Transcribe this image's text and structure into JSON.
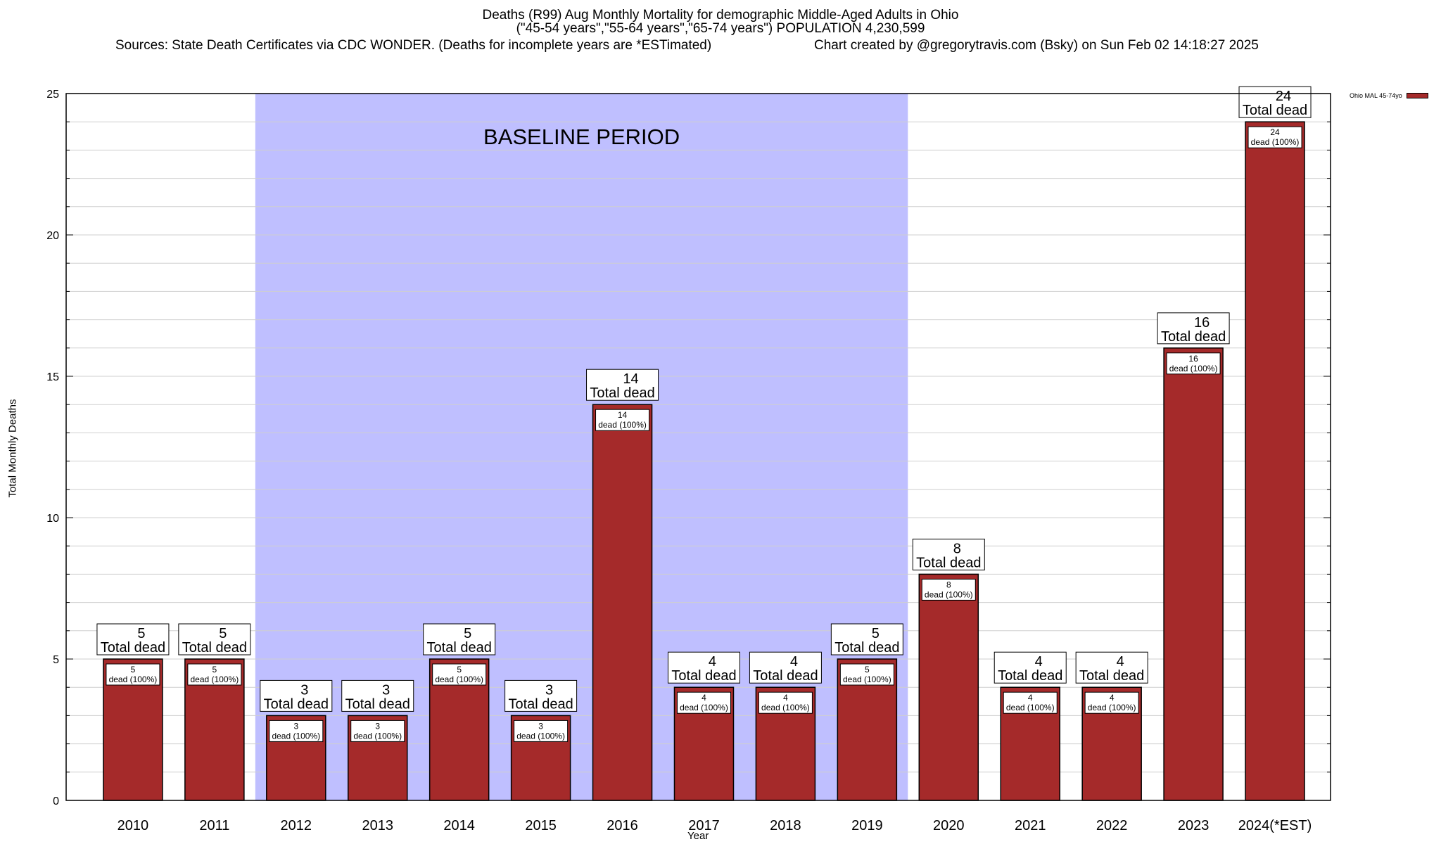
{
  "title": {
    "line1": "Deaths (R99) Aug Monthly Mortality for demographic Middle-Aged Adults in Ohio",
    "line2": "(\"45-54 years\",\"55-64 years\",\"65-74 years\") POPULATION 4,230,599",
    "sources": "Sources: State Death Certificates via CDC WONDER. (Deaths for incomplete years are *ESTimated)",
    "credit": "Chart created by @gregorytravis.com (Bsky) on Sun Feb 02 14:18:27 2025"
  },
  "legend": {
    "label": "Ohio MAL 45-74yo",
    "color": "#a52a2a"
  },
  "colors": {
    "bar": "#a52a2a",
    "baseline": "#bfbfff",
    "grid": "#cfcfcf"
  },
  "chart_data": {
    "type": "bar",
    "title": "Deaths (R99) Aug Monthly Mortality for demographic Middle-Aged Adults in Ohio",
    "xlabel": "Year",
    "ylabel": "Total Monthly Deaths",
    "ylim": [
      0,
      25
    ],
    "yticks": [
      0,
      5,
      10,
      15,
      20,
      25
    ],
    "grid": true,
    "legend_position": "top-right",
    "categories": [
      "2010",
      "2011",
      "2012",
      "2013",
      "2014",
      "2015",
      "2016",
      "2017",
      "2018",
      "2019",
      "2020",
      "2021",
      "2022",
      "2023",
      "2024(*EST)"
    ],
    "series": [
      {
        "name": "Ohio MAL 45-74yo",
        "values": [
          5,
          5,
          3,
          3,
          5,
          3,
          14,
          4,
          4,
          5,
          8,
          4,
          4,
          16,
          24
        ]
      }
    ],
    "bar_labels": {
      "total_suffix": "Total dead",
      "inner_suffix": "dead (100%)"
    },
    "annotations": {
      "baseline_label": "BASELINE PERIOD",
      "baseline_range": [
        "2012",
        "2019"
      ]
    }
  }
}
